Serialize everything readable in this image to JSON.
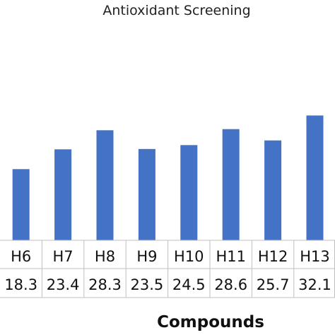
{
  "chart_data": {
    "type": "bar",
    "title": "Antioxidant Screening",
    "xlabel": "Compounds",
    "ylabel": "",
    "categories": [
      "H6",
      "H7",
      "H8",
      "H9",
      "H10",
      "H11",
      "H12",
      "H13"
    ],
    "values": [
      18.3,
      23.4,
      28.3,
      23.5,
      24.5,
      28.6,
      25.7,
      32.1
    ],
    "value_labels": [
      "18.3",
      "23.4",
      "28.3",
      "23.5",
      "24.5",
      "28.6",
      "25.7",
      "32.1"
    ],
    "ylim": [
      0,
      100
    ],
    "grid": false,
    "legend": "none",
    "bar_color": "#4472c4",
    "table_line_color": "#bfbfbf"
  }
}
